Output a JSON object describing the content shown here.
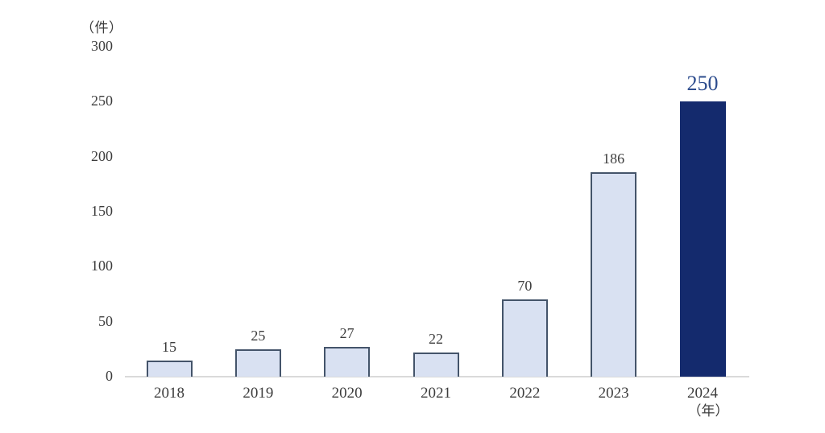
{
  "chart_data": {
    "type": "bar",
    "categories": [
      "2018",
      "2019",
      "2020",
      "2021",
      "2022",
      "2023",
      "2024"
    ],
    "values": [
      15,
      25,
      27,
      22,
      70,
      186,
      250
    ],
    "value_labels": [
      "15",
      "25",
      "27",
      "22",
      "70",
      "186",
      "250"
    ],
    "title": "",
    "xlabel": "",
    "ylabel": "",
    "y_unit_label": "（件）",
    "x_unit_label": "（年）",
    "ylim": [
      0,
      300
    ],
    "yticks": [
      "300",
      "250",
      "200",
      "150",
      "100",
      "50",
      "0"
    ],
    "ytick_values": [
      300,
      250,
      200,
      150,
      100,
      50,
      0
    ],
    "grid": false,
    "legend_position": "none",
    "highlight_index": 6,
    "colors": {
      "bar_fill": "#d9e1f2",
      "bar_border": "#44546a",
      "highlight_bar_fill": "#142a6d",
      "highlight_value_label": "#2e4d8e",
      "text": "#3d3d3d",
      "axis_line": "#dadada",
      "background": "#ffffff"
    }
  }
}
